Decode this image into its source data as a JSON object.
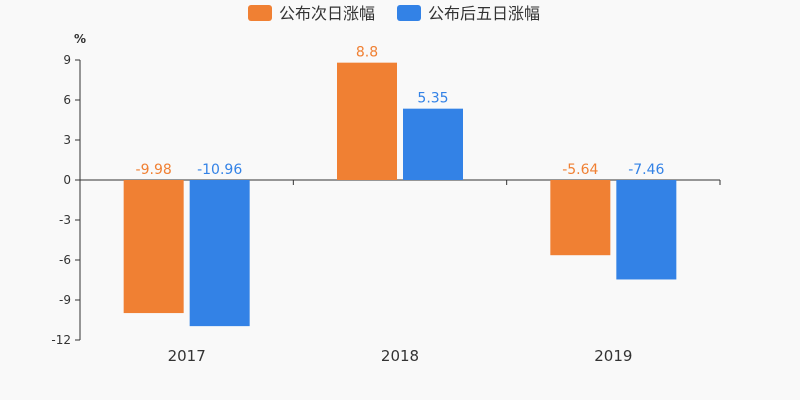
{
  "chart_data": {
    "type": "bar",
    "title": "",
    "ylabel": "%",
    "xlabel": "",
    "categories": [
      "2017",
      "2018",
      "2019"
    ],
    "series": [
      {
        "name": "公布次日涨幅",
        "color": "#f08033",
        "values": [
          -9.98,
          8.8,
          -5.64
        ],
        "labels": [
          "-9.98",
          "8.8",
          "-5.64"
        ]
      },
      {
        "name": "公布后五日涨幅",
        "color": "#3382e6",
        "values": [
          -10.96,
          5.35,
          -7.46
        ],
        "labels": [
          "-10.96",
          "5.35",
          "-7.46"
        ]
      }
    ],
    "ylim": [
      -12,
      9
    ],
    "yticks": [
      9,
      6,
      3,
      0,
      -3,
      -6,
      -9,
      -12
    ],
    "ytick_labels": [
      "9",
      "6",
      "3",
      "0",
      "-3",
      "-6",
      "-9",
      "-12"
    ],
    "grid": false,
    "legend_position": "top-center"
  }
}
